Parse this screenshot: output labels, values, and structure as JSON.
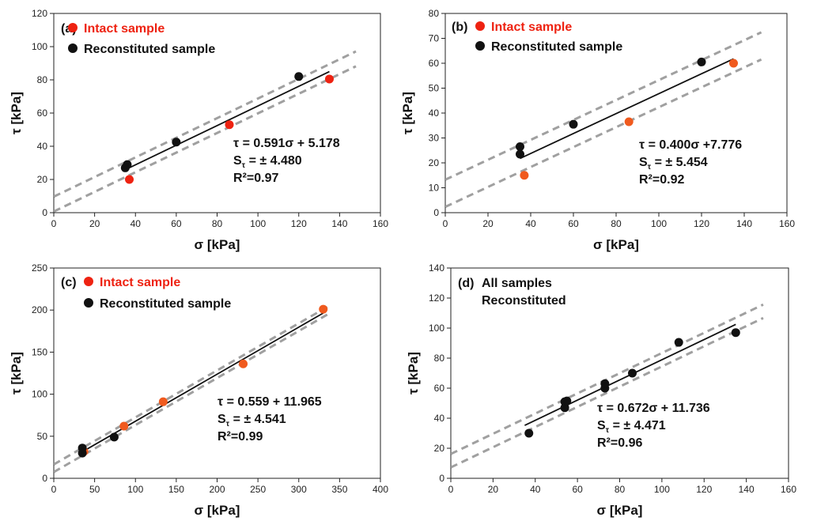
{
  "colors": {
    "intact": "#ee2211",
    "intact_c": "#f05a1e",
    "reconstituted": "#111111",
    "band": "#a0a0a0",
    "fit": "#111111"
  },
  "chart_data": [
    {
      "type": "scatter",
      "panel_label": "(a)",
      "legend": [
        {
          "label": "Intact sample",
          "color": "#ee2211"
        },
        {
          "label": "Reconstituted sample",
          "color": "#111111"
        }
      ],
      "xlabel": "σ [kPa]",
      "ylabel": "τ [kPa]",
      "xlim": [
        0,
        160
      ],
      "ylim": [
        0,
        120
      ],
      "xticks": [
        "0",
        "20",
        "40",
        "60",
        "80",
        "100",
        "120",
        "140",
        "160"
      ],
      "yticks": [
        "0",
        "20",
        "40",
        "60",
        "80",
        "100",
        "120"
      ],
      "series": [
        {
          "name": "Intact sample",
          "color": "#ee2211",
          "points": [
            [
              37,
              20
            ],
            [
              86,
              53
            ],
            [
              135,
              80.5
            ]
          ]
        },
        {
          "name": "Reconstituted sample",
          "color": "#111111",
          "points": [
            [
              35,
              27
            ],
            [
              36,
              29
            ],
            [
              60,
              42.5
            ],
            [
              120,
              82
            ]
          ]
        }
      ],
      "fit": {
        "slope": 0.591,
        "intercept": 5.178,
        "x_range": [
          35,
          135
        ],
        "band": 4.48,
        "band_x_range": [
          0,
          148
        ]
      },
      "equation": "τ = 0.591σ + 5.178",
      "stderr_prefix": "S",
      "stderr_sub": "τ",
      "stderr_value": " = ± 4.480",
      "r2": "R²=0.97"
    },
    {
      "type": "scatter",
      "panel_label": "(b)",
      "legend": [
        {
          "label": "Intact sample",
          "color": "#ee2211"
        },
        {
          "label": "Reconstituted sample",
          "color": "#111111"
        }
      ],
      "xlabel": "σ [kPa]",
      "ylabel": "τ [kPa]",
      "xlim": [
        0,
        160
      ],
      "ylim": [
        0,
        80
      ],
      "xticks": [
        "0",
        "20",
        "40",
        "60",
        "80",
        "100",
        "120",
        "140",
        "160"
      ],
      "yticks": [
        "0",
        "10",
        "20",
        "30",
        "40",
        "50",
        "60",
        "70",
        "80"
      ],
      "series": [
        {
          "name": "Intact sample",
          "color": "#f05a1e",
          "points": [
            [
              37,
              15
            ],
            [
              86,
              36.5
            ],
            [
              135,
              60
            ]
          ]
        },
        {
          "name": "Reconstituted sample",
          "color": "#111111",
          "points": [
            [
              35,
              23.5
            ],
            [
              35,
              26.5
            ],
            [
              60,
              35.5
            ],
            [
              120,
              60.5
            ]
          ]
        }
      ],
      "fit": {
        "slope": 0.4,
        "intercept": 7.776,
        "x_range": [
          35,
          135
        ],
        "band": 5.454,
        "band_x_range": [
          0,
          148
        ]
      },
      "equation": "τ = 0.400σ +7.776",
      "stderr_prefix": "S",
      "stderr_sub": "τ",
      "stderr_value": " = ± 5.454",
      "r2": "R²=0.92"
    },
    {
      "type": "scatter",
      "panel_label": "(c)",
      "legend": [
        {
          "label": "Intact sample",
          "color": "#ee2211"
        },
        {
          "label": "Reconstituted sample",
          "color": "#111111"
        }
      ],
      "xlabel": "σ [kPa]",
      "ylabel": "τ [kPa]",
      "xlim": [
        0,
        400
      ],
      "ylim": [
        0,
        250
      ],
      "xticks": [
        "0",
        "50",
        "100",
        "150",
        "200",
        "250",
        "300",
        "350",
        "400"
      ],
      "yticks": [
        "0",
        "50",
        "100",
        "150",
        "200",
        "250"
      ],
      "series": [
        {
          "name": "Intact sample",
          "color": "#f05a1e",
          "points": [
            [
              37,
              32
            ],
            [
              86,
              62
            ],
            [
              134,
              91
            ],
            [
              232,
              136
            ],
            [
              330,
              201
            ]
          ]
        },
        {
          "name": "Reconstituted sample",
          "color": "#111111",
          "points": [
            [
              35,
              36
            ],
            [
              35,
              30
            ],
            [
              74,
              49
            ]
          ]
        }
      ],
      "fit": {
        "slope": 0.559,
        "intercept": 11.965,
        "x_range": [
          35,
          330
        ],
        "band": 4.541,
        "band_x_range": [
          0,
          338
        ]
      },
      "equation": "τ = 0.559 + 11.965",
      "stderr_prefix": "S",
      "stderr_sub": "τ",
      "stderr_value": " = ± 4.541",
      "r2": "R²=0.99"
    },
    {
      "type": "scatter",
      "panel_label": "(d)",
      "legend_text": [
        "All samples",
        "Reconstituted"
      ],
      "xlabel": "σ [kPa]",
      "ylabel": "τ [kPa]",
      "xlim": [
        0,
        160
      ],
      "ylim": [
        0,
        140
      ],
      "xticks": [
        "0",
        "20",
        "40",
        "60",
        "80",
        "100",
        "120",
        "140",
        "160"
      ],
      "yticks": [
        "0",
        "20",
        "40",
        "60",
        "80",
        "100",
        "120",
        "140"
      ],
      "series": [
        {
          "name": "All samples Reconstituted",
          "color": "#111111",
          "points": [
            [
              37,
              30
            ],
            [
              54,
              47
            ],
            [
              54,
              51
            ],
            [
              55,
              51.5
            ],
            [
              73,
              60
            ],
            [
              73,
              63
            ],
            [
              86,
              70
            ],
            [
              108,
              90.5
            ],
            [
              135,
              97
            ]
          ]
        }
      ],
      "fit": {
        "slope": 0.672,
        "intercept": 11.736,
        "x_range": [
          35,
          135
        ],
        "band": 4.471,
        "band_x_range": [
          0,
          148
        ]
      },
      "equation": "τ = 0.672σ + 11.736",
      "stderr_prefix": "S",
      "stderr_sub": "τ",
      "stderr_value": " = ± 4.471",
      "r2": "R²=0.96"
    }
  ]
}
